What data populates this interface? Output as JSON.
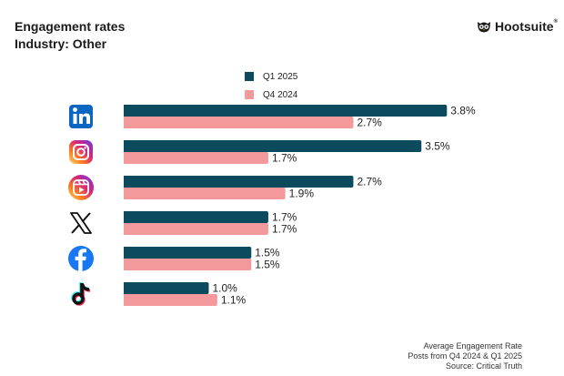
{
  "header": {
    "title": "Engagement rates",
    "subtitle": "Industry: Other",
    "brand": "Hootsuite",
    "brand_mark": "®"
  },
  "colors": {
    "q1_2025": "#0c4a5e",
    "q4_2024": "#f4999b",
    "linkedin": "#0a66c2",
    "instagram_gradient": [
      "#feda75",
      "#fa7e1e",
      "#d62976",
      "#962fbf",
      "#4f5bd5"
    ],
    "x": "#111111",
    "facebook": "#1877f2",
    "tiktok": "#111111"
  },
  "chart_data": {
    "type": "bar",
    "orientation": "horizontal",
    "title": "Engagement rates",
    "subtitle": "Industry: Other",
    "categories": [
      "LinkedIn",
      "Instagram",
      "Instagram Reels",
      "X",
      "Facebook",
      "TikTok"
    ],
    "icons": [
      "linkedin-icon",
      "instagram-icon",
      "instagram-reels-icon",
      "x-icon",
      "facebook-icon",
      "tiktok-icon"
    ],
    "series": [
      {
        "name": "Q1 2025",
        "values": [
          3.8,
          3.5,
          2.7,
          1.7,
          1.5,
          1.0
        ],
        "labels": [
          "3.8%",
          "3.5%",
          "2.7%",
          "1.7%",
          "1.5%",
          "1.0%"
        ]
      },
      {
        "name": "Q4 2024",
        "values": [
          2.7,
          1.7,
          1.9,
          1.7,
          1.5,
          1.1
        ],
        "labels": [
          "2.7%",
          "1.7%",
          "1.9%",
          "1.7%",
          "1.5%",
          "1.1%"
        ]
      }
    ],
    "xlim": [
      0,
      4.0
    ],
    "grid": false,
    "legend": "top-center",
    "unit": "%"
  },
  "footnote": {
    "line1": "Average Engagement Rate",
    "line2": "Posts from Q4 2024 & Q1 2025",
    "line3": "Source: Critical Truth"
  }
}
